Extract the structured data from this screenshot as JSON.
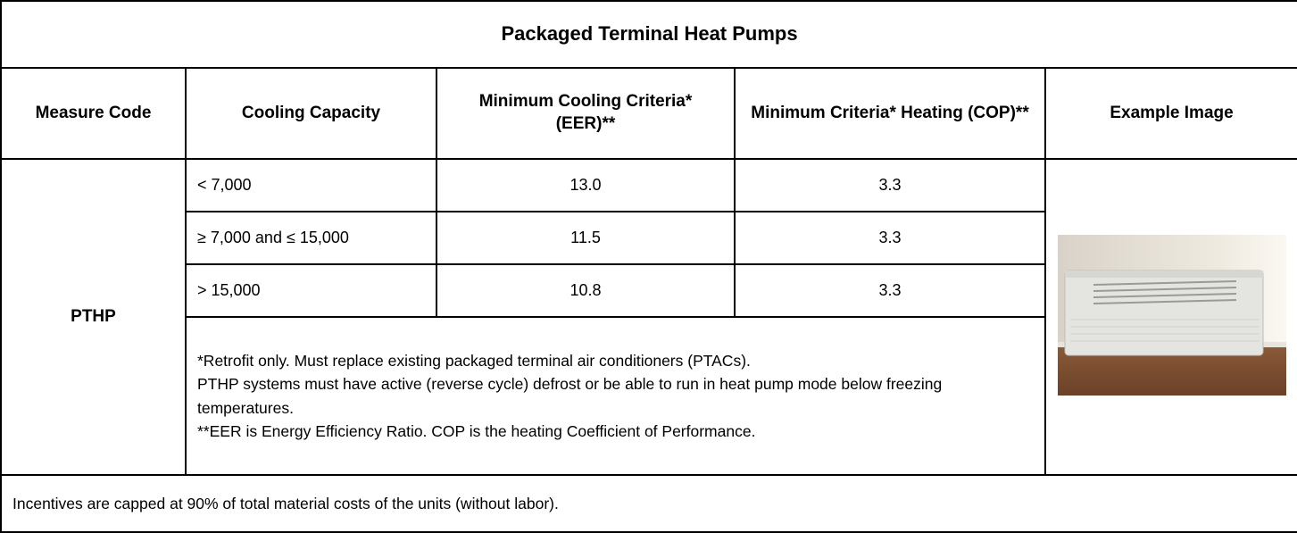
{
  "title": "Packaged Terminal Heat Pumps",
  "table": {
    "headers": [
      "Measure Code",
      "Cooling Capacity",
      "Minimum Cooling Criteria* (EER)**",
      "Minimum Criteria* Heating (COP)**",
      "Example Image"
    ],
    "measure_code": "PTHP",
    "rows": [
      [
        "< 7,000",
        "13.0",
        "3.3"
      ],
      [
        "≥ 7,000 and ≤ 15,000",
        "11.5",
        "3.3"
      ],
      [
        "> 15,000",
        "10.8",
        "3.3"
      ]
    ],
    "notes": [
      "*Retrofit only. Must replace existing packaged terminal air conditioners (PTACs).",
      "PTHP systems must have active (reverse cycle) defrost or be able to run in heat pump mode below freezing temperatures.",
      "**EER is Energy Efficiency Ratio. COP is the heating Coefficient of Performance."
    ]
  },
  "footer": "Incentives are capped at 90% of total material costs of the units (without labor)."
}
